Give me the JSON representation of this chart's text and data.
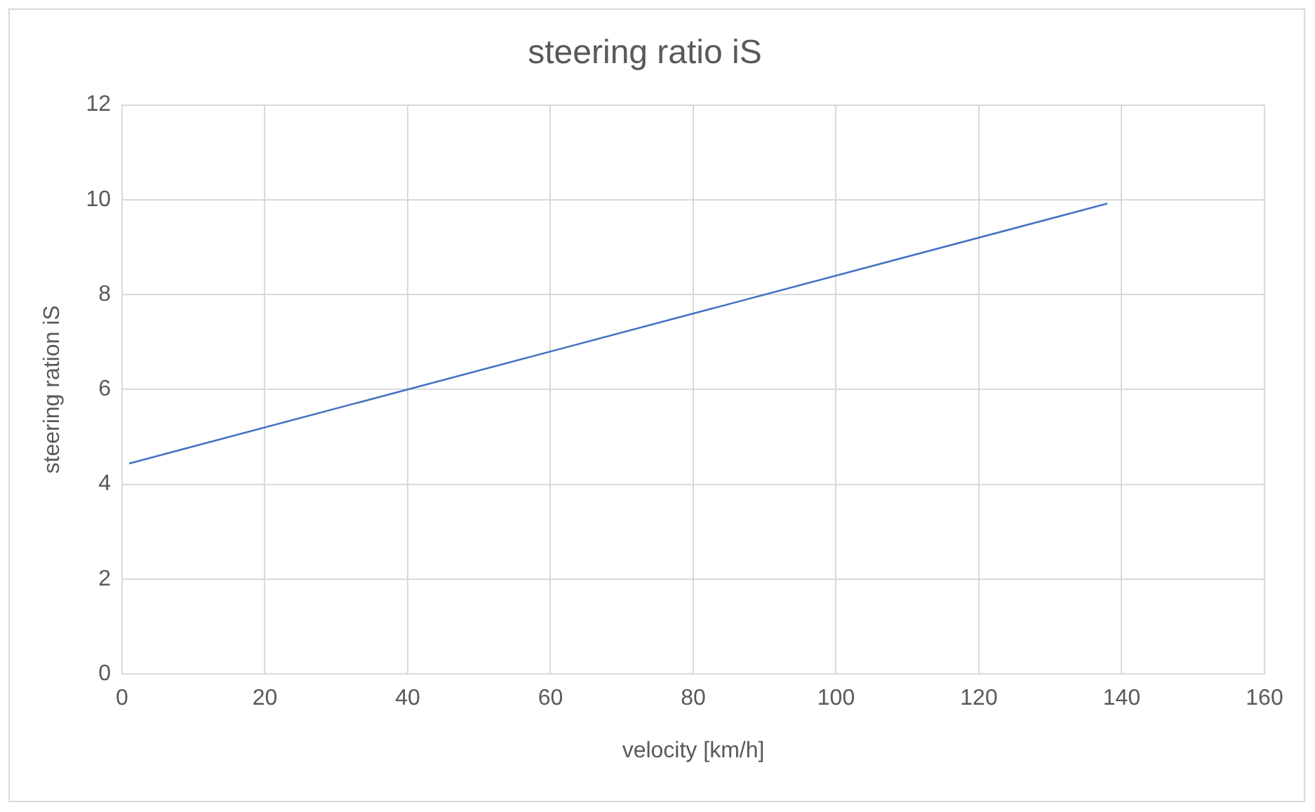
{
  "chart_data": {
    "type": "line",
    "title": "steering ratio iS",
    "xlabel": "velocity [km/h]",
    "ylabel": "steering ration iS",
    "x": [
      1,
      138
    ],
    "series": [
      {
        "color": "#4472c4",
        "values": [
          4.44,
          9.92
        ]
      }
    ],
    "xlim": [
      0,
      160
    ],
    "xticks": [
      0,
      20,
      40,
      60,
      80,
      100,
      120,
      140,
      160
    ],
    "ylim": [
      0,
      12
    ],
    "yticks": [
      0,
      2,
      4,
      6,
      8,
      10,
      12
    ],
    "grid": true,
    "legend": false,
    "marker": "none",
    "line_style": "solid"
  }
}
